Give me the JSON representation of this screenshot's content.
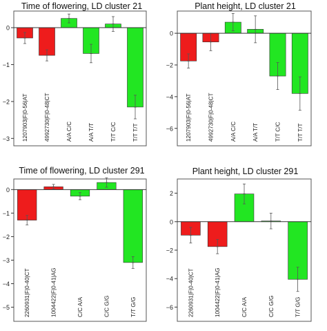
{
  "chart_data": [
    {
      "type": "bar",
      "title": "Time of flowering, LD cluster 21",
      "categories": [
        "1207903|F|0-56|AT",
        "4992730|F|0-48|CT",
        "A/A C/C",
        "A/A T/T",
        "T/T C/C",
        "T/T T/T"
      ],
      "values": [
        -0.28,
        -0.75,
        0.25,
        -0.7,
        0.1,
        -2.15
      ],
      "errors": [
        0.15,
        0.15,
        0.12,
        0.25,
        0.2,
        0.32
      ],
      "colors": [
        "#ee1c1c",
        "#ee1c1c",
        "#22e622",
        "#22e622",
        "#22e622",
        "#22e622"
      ],
      "ylim": [
        -3.2,
        0.45
      ],
      "yticks": [
        0,
        -1,
        -2,
        -3
      ],
      "ytick_labels": [
        "0",
        "−1",
        "−2",
        "−3"
      ]
    },
    {
      "type": "bar",
      "title": "Plant height, LD cluster 21",
      "categories": [
        "1207903|F|0-56|AT",
        "4992730|F|0-48|CT",
        "A/A C/C",
        "A/A T/T",
        "T/T C/C",
        "T/T T/T"
      ],
      "values": [
        -1.75,
        -0.55,
        0.7,
        0.25,
        -2.7,
        -3.8
      ],
      "errors": [
        0.45,
        0.55,
        0.55,
        0.85,
        0.85,
        1.05
      ],
      "colors": [
        "#ee1c1c",
        "#ee1c1c",
        "#22e622",
        "#22e622",
        "#22e622",
        "#22e622"
      ],
      "ylim": [
        -7.1,
        1.4
      ],
      "yticks": [
        0,
        -2,
        -4,
        -6
      ],
      "ytick_labels": [
        "0",
        "−2",
        "−4",
        "−6"
      ]
    },
    {
      "type": "bar",
      "title": "Time of flowering, LD cluster 291",
      "categories": [
        "2260931|F|0-40|CT",
        "1004422|F|0-41|AG",
        "C/C A/A",
        "C/C G/G",
        "T/T G/G"
      ],
      "values": [
        -1.3,
        0.12,
        -0.28,
        0.3,
        -3.1
      ],
      "errors": [
        0.2,
        0.1,
        0.15,
        0.2,
        0.25
      ],
      "colors": [
        "#ee1c1c",
        "#ee1c1c",
        "#22e622",
        "#22e622",
        "#22e622"
      ],
      "ylim": [
        -5.6,
        0.45
      ],
      "yticks": [
        0,
        -1,
        -2,
        -3,
        -4,
        -5
      ],
      "ytick_labels": [
        "0",
        "−1",
        "−2",
        "−3",
        "−4",
        "−5"
      ]
    },
    {
      "type": "bar",
      "title": "Plant height, LD cluster 291",
      "categories": [
        "2260931|F|0-40|CT",
        "1004422|F|0-41|AG",
        "C/C A/A",
        "C/C G/G",
        "T/T G/G"
      ],
      "values": [
        -0.95,
        -1.75,
        1.95,
        0.05,
        -4.05
      ],
      "errors": [
        0.55,
        0.5,
        0.7,
        0.55,
        0.85
      ],
      "colors": [
        "#ee1c1c",
        "#ee1c1c",
        "#22e622",
        "#22e622",
        "#22e622"
      ],
      "ylim": [
        -7.0,
        3.0
      ],
      "yticks": [
        2,
        0,
        -2,
        -4,
        -6
      ],
      "ytick_labels": [
        "2",
        "0",
        "−2",
        "−4",
        "−6"
      ]
    }
  ]
}
